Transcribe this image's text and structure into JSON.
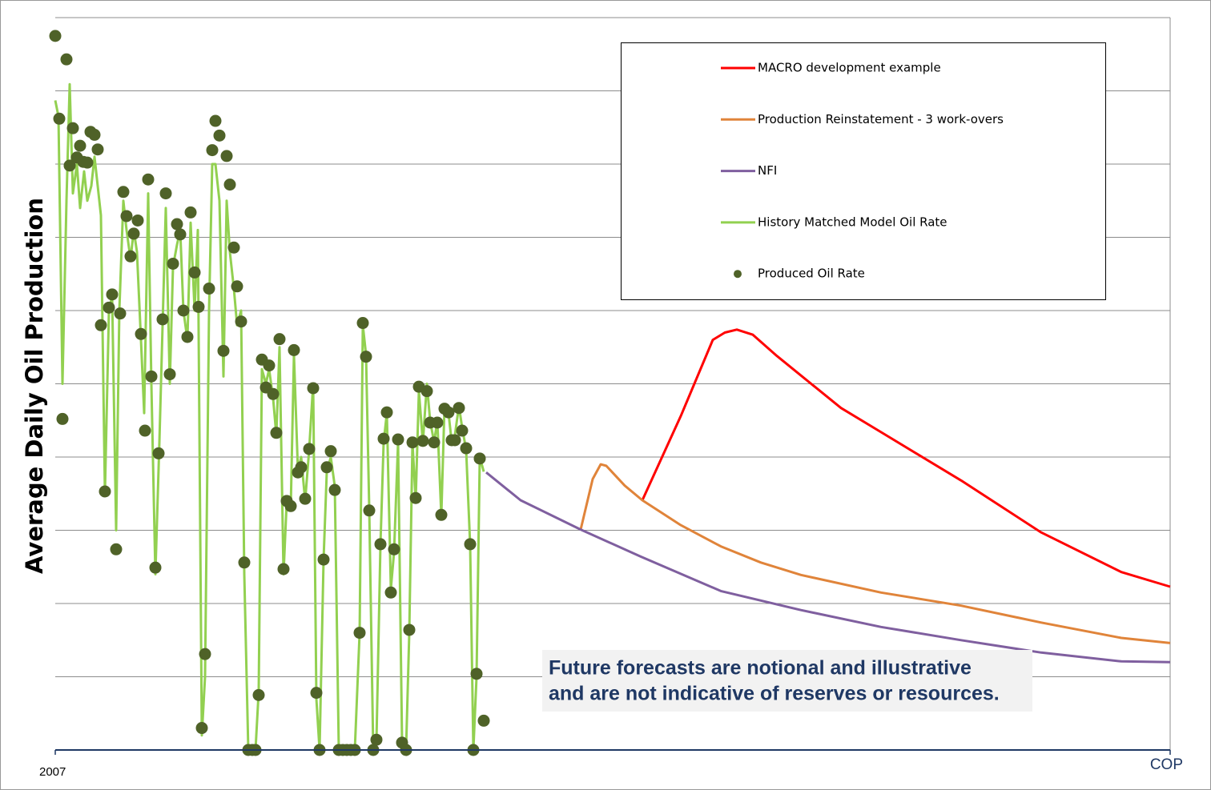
{
  "chart_data": {
    "type": "line",
    "ylabel": "Average Daily Oil Production",
    "xlim": [
      0,
      1392
    ],
    "xticks": [
      {
        "value": 0,
        "label": "2007"
      },
      {
        "value": 1392,
        "label": "COP"
      }
    ],
    "ylim": [
      0,
      100
    ],
    "yticks": [
      0,
      10,
      20,
      30,
      40,
      50,
      60,
      70,
      80,
      90,
      100
    ],
    "ytick_labels": false,
    "grid": true,
    "legend": "upper right",
    "annotation": [
      "Future forecasts are notional and illustrative",
      "and are not indicative of reserves or resources."
    ],
    "series": [
      {
        "name": "MACRO development example",
        "kind": "line",
        "color": "#ff0000",
        "x": [
          733,
          781,
          821,
          836,
          851,
          871,
          901,
          981,
          1031,
          1131,
          1231,
          1331,
          1392
        ],
        "values": [
          34.1,
          45.6,
          56.0,
          57.0,
          57.4,
          56.7,
          53.8,
          46.7,
          43.4,
          36.8,
          29.7,
          24.3,
          22.3
        ]
      },
      {
        "name": "Production Reinstatement - 3 work-overs",
        "kind": "line",
        "color": "#e0843a",
        "x": [
          656,
          671,
          681,
          688,
          711,
          733,
          781,
          831,
          881,
          931,
          1031,
          1131,
          1231,
          1331,
          1392
        ],
        "values": [
          30.1,
          37.0,
          39.0,
          38.8,
          36.1,
          34.1,
          30.7,
          27.8,
          25.6,
          23.9,
          21.5,
          19.7,
          17.4,
          15.3,
          14.6
        ]
      },
      {
        "name": "NFI",
        "kind": "line",
        "color": "#7f5f9f",
        "x": [
          538,
          581,
          656,
          731,
          831,
          931,
          1031,
          1131,
          1231,
          1331,
          1392
        ],
        "values": [
          37.9,
          34.1,
          30.1,
          26.4,
          21.7,
          19.1,
          16.8,
          15.0,
          13.3,
          12.1,
          12.0
        ]
      },
      {
        "name": "History Matched Model Oil Rate",
        "kind": "line",
        "color": "#92d050",
        "x": [
          0,
          4,
          9,
          14,
          18,
          22,
          27,
          31,
          36,
          40,
          45,
          49,
          53,
          57,
          62,
          67,
          71,
          76,
          80,
          85,
          89,
          94,
          98,
          102,
          107,
          111,
          116,
          120,
          125,
          130,
          134,
          138,
          143,
          147,
          152,
          156,
          160,
          165,
          169,
          174,
          178,
          183,
          187,
          192,
          196,
          200,
          205,
          210,
          214,
          218,
          223,
          227,
          232,
          236,
          241,
          250,
          254,
          258,
          263,
          267,
          272,
          276,
          280,
          285,
          289,
          294,
          298,
          303,
          307,
          312,
          317,
          322,
          326,
          330,
          335,
          339,
          344,
          349,
          354,
          374,
          380,
          384,
          388,
          392,
          397,
          401,
          406,
          410,
          414,
          419,
          423,
          428,
          433,
          438,
          442,
          446,
          450,
          454,
          459,
          464,
          468,
          473,
          477,
          482,
          486,
          491,
          495,
          499,
          504,
          508,
          513,
          518,
          522,
          526,
          530,
          535
        ],
        "values": [
          88.7,
          86.5,
          50,
          75,
          90.9,
          76,
          80,
          74,
          79,
          75,
          77,
          81,
          77,
          73,
          35,
          60,
          62,
          30,
          60,
          75,
          71,
          67,
          71,
          68,
          56,
          46,
          76,
          50,
          24,
          42,
          58,
          74,
          50,
          66,
          69,
          71,
          60,
          56,
          72,
          60,
          71,
          2,
          10,
          60,
          80,
          80,
          75,
          51,
          75,
          68,
          63,
          58,
          60,
          24,
          0,
          0,
          8,
          52,
          50,
          52,
          48,
          43,
          55,
          24,
          34,
          33,
          54,
          38,
          40,
          34,
          41,
          50,
          7,
          0,
          26,
          38,
          40,
          36,
          0,
          0,
          16,
          58,
          54,
          33,
          0,
          1,
          28,
          42,
          46,
          22,
          27,
          42,
          1,
          0,
          16,
          42,
          34,
          49,
          42,
          50,
          45,
          42,
          45,
          32,
          47,
          46,
          42,
          43,
          47,
          44,
          41,
          28,
          0,
          10,
          40,
          38
        ]
      },
      {
        "name": "Produced Oil Rate",
        "kind": "scatter",
        "color": "#4f6228",
        "x": [
          0,
          5,
          9,
          14,
          18,
          22,
          27,
          31,
          35,
          40,
          44,
          49,
          53,
          57,
          62,
          67,
          71,
          76,
          81,
          85,
          89,
          94,
          98,
          103,
          107,
          112,
          116,
          120,
          125,
          129,
          134,
          138,
          143,
          147,
          152,
          156,
          160,
          165,
          169,
          174,
          179,
          183,
          187,
          192,
          196,
          200,
          205,
          210,
          214,
          218,
          223,
          227,
          232,
          236,
          241,
          246,
          250,
          254,
          258,
          263,
          267,
          272,
          276,
          280,
          285,
          289,
          294,
          298,
          303,
          307,
          312,
          317,
          322,
          326,
          330,
          335,
          339,
          344,
          349,
          354,
          359,
          364,
          369,
          374,
          380,
          384,
          388,
          392,
          397,
          401,
          406,
          410,
          414,
          419,
          423,
          428,
          433,
          438,
          442,
          446,
          450,
          454,
          459,
          464,
          468,
          473,
          477,
          482,
          486,
          491,
          495,
          499,
          504,
          508,
          513,
          518,
          522,
          526,
          530,
          535
        ],
        "values": [
          97.5,
          86.2,
          45.2,
          94.3,
          79.8,
          84.9,
          80.9,
          82.5,
          80.3,
          80.2,
          84.4,
          84.0,
          82.0,
          58.0,
          35.3,
          60.4,
          62.2,
          27.4,
          59.6,
          76.2,
          72.9,
          67.4,
          70.5,
          72.3,
          56.8,
          43.6,
          77.9,
          51.0,
          24.9,
          40.5,
          58.8,
          76.0,
          51.3,
          66.4,
          71.8,
          70.4,
          60.0,
          56.4,
          73.4,
          65.2,
          60.5,
          3.0,
          13.1,
          63.0,
          81.9,
          85.9,
          83.9,
          54.5,
          81.1,
          77.2,
          68.6,
          63.3,
          58.5,
          25.6,
          0,
          0,
          0,
          7.5,
          53.3,
          49.5,
          52.5,
          48.6,
          43.3,
          56.1,
          24.7,
          34.0,
          33.3,
          54.6,
          37.9,
          38.6,
          34.3,
          41.1,
          49.4,
          7.8,
          0,
          26.0,
          38.6,
          40.8,
          35.5,
          0,
          0,
          0,
          0,
          0,
          16.0,
          58.3,
          53.7,
          32.7,
          0,
          1.4,
          28.1,
          42.5,
          46.1,
          21.5,
          27.4,
          42.4,
          1.0,
          0,
          16.4,
          42.0,
          34.4,
          49.6,
          42.2,
          49.0,
          44.7,
          42.0,
          44.7,
          32.1,
          46.6,
          46.1,
          42.3,
          42.3,
          46.7,
          43.6,
          41.2,
          28.1,
          0,
          10.4,
          39.8,
          4.0
        ]
      }
    ]
  }
}
